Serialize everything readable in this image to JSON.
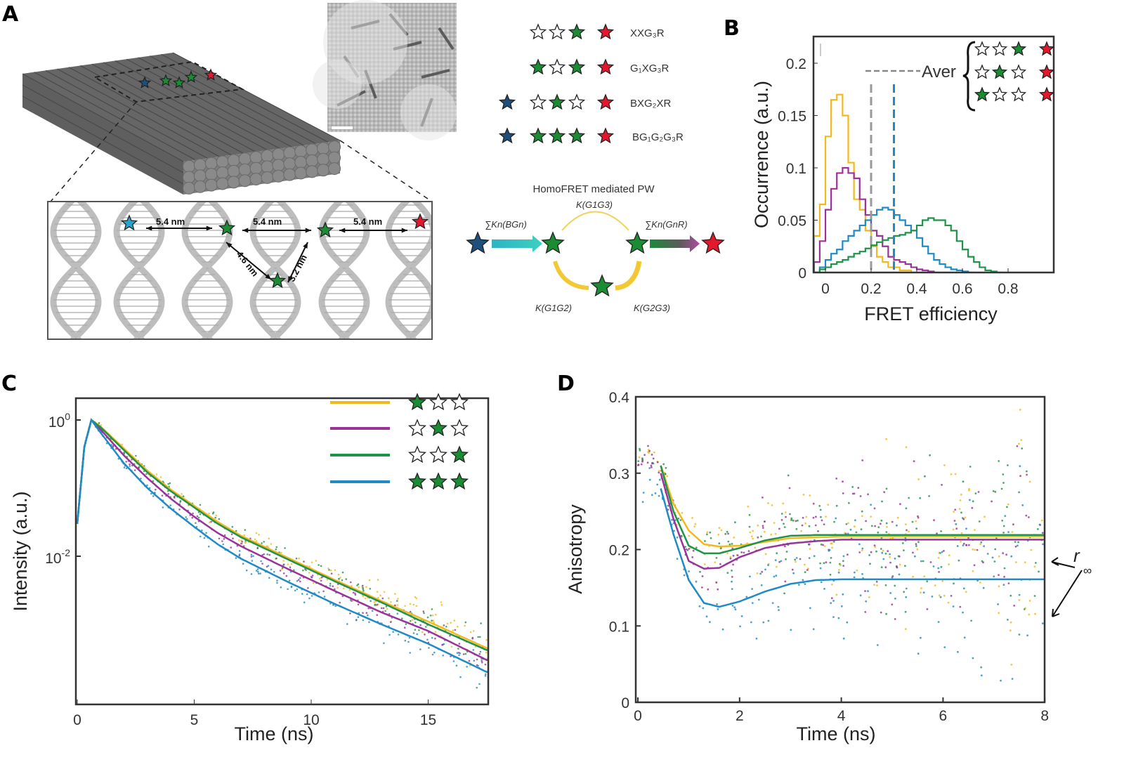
{
  "panels": {
    "a": "A",
    "b": "B",
    "c": "C",
    "d": "D"
  },
  "colors": {
    "star_blue": "#1f4f7d",
    "star_cyan": "#29a3c9",
    "star_green": "#1b8c33",
    "star_red": "#e5172c",
    "yellow": "#f2b91e",
    "purple": "#993399",
    "green": "#20934a",
    "blue": "#1f8ac4",
    "gray_dash": "#999999"
  },
  "panel_a": {
    "distances": {
      "d1": "5.4 nm",
      "d2": "5.4 nm",
      "d3": "5.4 nm",
      "d4": "4.6 nm",
      "d5": "3.2 nm"
    },
    "constructs": [
      {
        "stars": [
          "none",
          "empty",
          "empty",
          "green",
          "red"
        ],
        "label": "XXG₃R"
      },
      {
        "stars": [
          "none",
          "green",
          "empty",
          "green",
          "red"
        ],
        "label": "G₁XG₃R"
      },
      {
        "stars": [
          "blue",
          "empty",
          "green",
          "empty",
          "red"
        ],
        "label": "BXG₂XR"
      },
      {
        "stars": [
          "blue",
          "green",
          "green",
          "green",
          "red"
        ],
        "label": "BG₁G₂G₃R"
      }
    ],
    "pathway": {
      "title": "HomoFRET mediated PW",
      "k_bg": "∑Kn(BGn)",
      "k_gr": "∑Kn(GnR)",
      "k_g1g3": "K(G1G3)",
      "k_g1g2": "K(G1G2)",
      "k_g2g3": "K(G2G3)"
    }
  },
  "chart_data": [
    {
      "panel": "B",
      "type": "line",
      "style": "step-histogram",
      "xlabel": "FRET efficiency",
      "ylabel": "Occurrence (a.u.)",
      "xlim": [
        -0.05,
        1.0
      ],
      "ylim": [
        0,
        0.225
      ],
      "xticks": [
        "0",
        "0.2",
        "0.4",
        "0.6",
        "0.8"
      ],
      "yticks": [
        "0",
        "0.05",
        "0.1",
        "0.15",
        "0.2"
      ],
      "bin_start": -0.05,
      "bin_width": 0.025,
      "series": [
        {
          "color": "yellow",
          "values": [
            0.035,
            0.065,
            0.13,
            0.165,
            0.17,
            0.15,
            0.105,
            0.07,
            0.06,
            0.04,
            0.025,
            0.015,
            0.01,
            0.005,
            0.005,
            0.002,
            0.002,
            0
          ]
        },
        {
          "color": "purple",
          "values": [
            0.01,
            0.03,
            0.06,
            0.08,
            0.095,
            0.1,
            0.095,
            0.09,
            0.07,
            0.055,
            0.04,
            0.035,
            0.025,
            0.015,
            0.012,
            0.01,
            0.008,
            0.005,
            0.003,
            0.002,
            0.001,
            0
          ]
        },
        {
          "color": "blue",
          "values": [
            0,
            0.005,
            0.012,
            0.018,
            0.022,
            0.03,
            0.035,
            0.04,
            0.045,
            0.05,
            0.055,
            0.06,
            0.062,
            0.06,
            0.055,
            0.05,
            0.045,
            0.04,
            0.033,
            0.025,
            0.018,
            0.012,
            0.008,
            0.005,
            0.003,
            0.002,
            0.001,
            0
          ]
        },
        {
          "color": "green",
          "values": [
            0,
            0.003,
            0.005,
            0.008,
            0.01,
            0.012,
            0.015,
            0.018,
            0.02,
            0.023,
            0.026,
            0.029,
            0.031,
            0.033,
            0.035,
            0.036,
            0.038,
            0.04,
            0.045,
            0.05,
            0.052,
            0.05,
            0.05,
            0.045,
            0.04,
            0.03,
            0.022,
            0.015,
            0.01,
            0.005,
            0.002,
            0.001,
            0
          ]
        }
      ],
      "vlines": [
        {
          "x": 0.2,
          "color": "gray_dash"
        },
        {
          "x": 0.3,
          "color": "blue"
        }
      ],
      "legend": {
        "label": "Aver",
        "rows": [
          [
            "empty",
            "empty",
            "green",
            "red"
          ],
          [
            "empty",
            "green",
            "empty",
            "red"
          ],
          [
            "green",
            "empty",
            "empty",
            "red"
          ]
        ],
        "placement": "top-right"
      },
      "grid": false
    },
    {
      "panel": "C",
      "type": "line",
      "xlabel": "Time (ns)",
      "ylabel": "Intensity (a.u.)",
      "xlim": [
        0,
        17.6
      ],
      "yscale": "log",
      "ylim": [
        6.6e-05,
        2.1
      ],
      "xticks": [
        "0",
        "5",
        "10",
        "15"
      ],
      "yticks": [
        {
          "base": "10",
          "exp": "0"
        },
        {
          "base": "10",
          "exp": "-2"
        }
      ],
      "x": [
        0,
        0.3,
        0.6,
        1,
        2,
        3,
        4,
        5,
        6,
        7,
        9,
        11,
        13,
        15,
        17.5
      ],
      "series": [
        {
          "color": "yellow",
          "legend_stars": [
            "green",
            "empty",
            "empty"
          ],
          "values": [
            0.03,
            0.4,
            1,
            0.8,
            0.38,
            0.18,
            0.095,
            0.055,
            0.032,
            0.02,
            0.0095,
            0.0045,
            0.0022,
            0.0011,
            0.00045
          ]
        },
        {
          "color": "purple",
          "legend_stars": [
            "empty",
            "green",
            "empty"
          ],
          "values": [
            0.03,
            0.4,
            1,
            0.72,
            0.3,
            0.14,
            0.07,
            0.038,
            0.022,
            0.014,
            0.0065,
            0.0031,
            0.0015,
            0.0008,
            0.0003
          ]
        },
        {
          "color": "green",
          "legend_stars": [
            "empty",
            "empty",
            "green"
          ],
          "values": [
            0.03,
            0.4,
            1,
            0.78,
            0.36,
            0.17,
            0.09,
            0.052,
            0.03,
            0.019,
            0.009,
            0.0043,
            0.0021,
            0.001,
            0.00042
          ]
        },
        {
          "color": "blue",
          "legend_stars": [
            "green",
            "green",
            "green"
          ],
          "values": [
            0.03,
            0.4,
            1,
            0.65,
            0.23,
            0.1,
            0.05,
            0.027,
            0.015,
            0.0092,
            0.0042,
            0.002,
            0.001,
            0.00052,
            0.0002
          ]
        }
      ],
      "legend_placement": "top-right",
      "grid": false
    },
    {
      "panel": "D",
      "type": "line",
      "xlabel": "Time (ns)",
      "ylabel": "Anisotropy",
      "xlim": [
        0,
        8
      ],
      "ylim": [
        0,
        0.4
      ],
      "xticks": [
        "0",
        "2",
        "4",
        "6",
        "8"
      ],
      "yticks": [
        "0",
        "0.1",
        "0.2",
        "0.3",
        "0.4"
      ],
      "x": [
        0,
        0.2,
        0.45,
        0.7,
        1,
        1.3,
        1.6,
        2,
        2.5,
        3,
        3.5,
        4,
        8
      ],
      "series": [
        {
          "color": "yellow",
          "values": [
            0.32,
            0.33,
            0.31,
            0.26,
            0.225,
            0.207,
            0.204,
            0.205,
            0.21,
            0.215,
            0.216,
            0.217,
            0.217
          ]
        },
        {
          "color": "green",
          "values": [
            0.32,
            0.33,
            0.31,
            0.25,
            0.205,
            0.195,
            0.195,
            0.202,
            0.212,
            0.218,
            0.219,
            0.219,
            0.219
          ]
        },
        {
          "color": "purple",
          "values": [
            0.31,
            0.32,
            0.3,
            0.24,
            0.185,
            0.175,
            0.176,
            0.19,
            0.202,
            0.208,
            0.211,
            0.213,
            0.213
          ]
        },
        {
          "color": "blue",
          "values": [
            0.25,
            0.29,
            0.28,
            0.22,
            0.16,
            0.13,
            0.125,
            0.132,
            0.145,
            0.155,
            0.16,
            0.161,
            0.161
          ]
        }
      ],
      "annotation": {
        "symbol": "r",
        "subscript": "∞"
      },
      "grid": false
    }
  ]
}
